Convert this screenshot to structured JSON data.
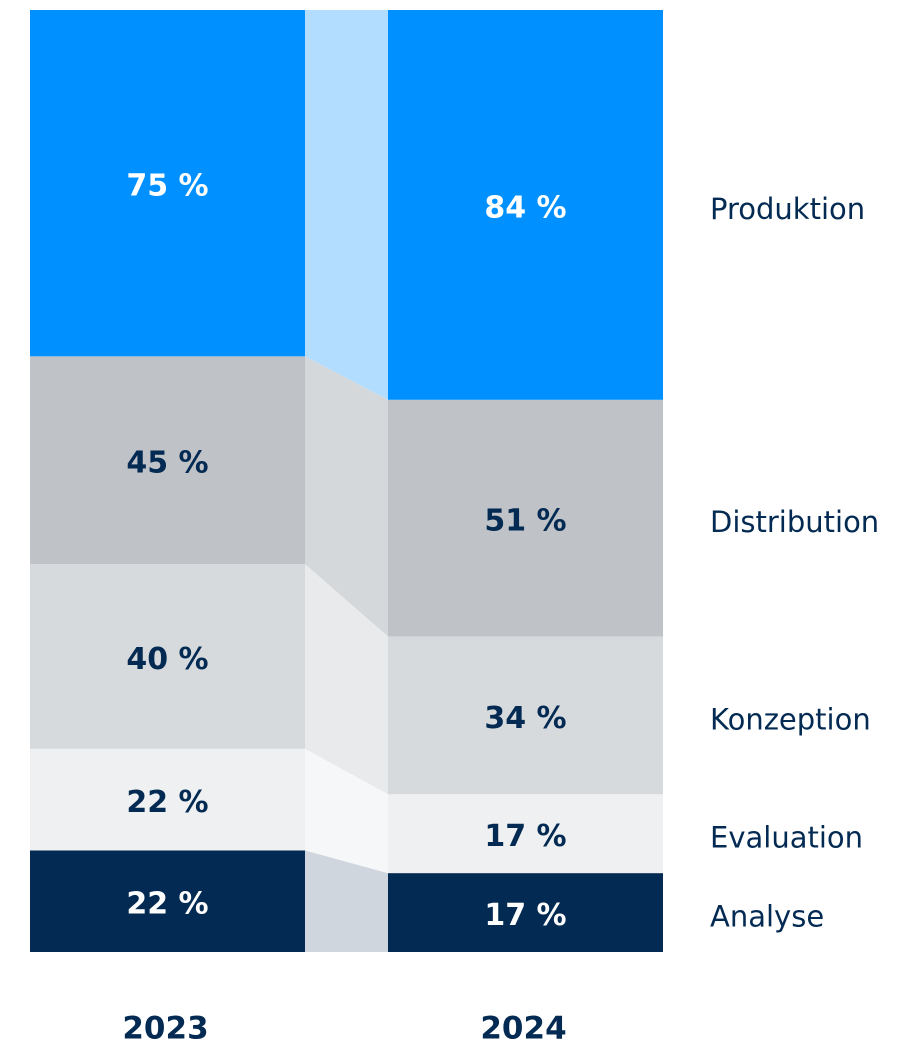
{
  "chart_data": {
    "type": "bar",
    "stacked": true,
    "normalized": true,
    "categories": [
      "2023",
      "2024"
    ],
    "series": [
      {
        "name": "Analyse",
        "color": "#032a52",
        "link_color": "#cfd6de",
        "label_color": "#ffffff",
        "values": [
          22,
          17
        ],
        "value_labels": [
          "22 %",
          "17 %"
        ]
      },
      {
        "name": "Evaluation",
        "color": "#eef0f2",
        "link_color": "#f6f7f8",
        "label_color": "#032a52",
        "values": [
          22,
          17
        ],
        "value_labels": [
          "22 %",
          "17 %"
        ]
      },
      {
        "name": "Konzeption",
        "color": "#d7dadd",
        "link_color": "#e8eaec",
        "label_color": "#032a52",
        "values": [
          40,
          34
        ],
        "value_labels": [
          "40 %",
          "34 %"
        ]
      },
      {
        "name": "Distribution",
        "color": "#bfc3c7",
        "link_color": "#d5d8db",
        "label_color": "#032a52",
        "values": [
          45,
          51
        ],
        "value_labels": [
          "45 %",
          "51 %"
        ]
      },
      {
        "name": "Produktion",
        "color": "#0090ff",
        "link_color": "#b3ddff",
        "label_color": "#ffffff",
        "values": [
          75,
          84
        ],
        "value_labels": [
          "75 %",
          "84 %"
        ]
      }
    ]
  }
}
